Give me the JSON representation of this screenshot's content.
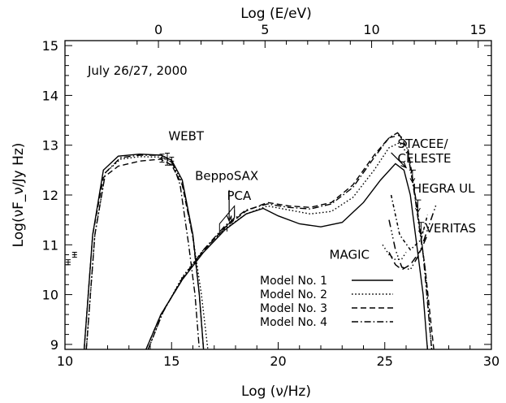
{
  "chart_data": {
    "type": "line",
    "title": "",
    "annotation_date": "July 26/27, 2000",
    "xlabel": "Log (ν/Hz)",
    "ylabel": "Log(νF_ν/Jy Hz)",
    "top_xlabel": "Log (E/eV)",
    "xlim": [
      10,
      30
    ],
    "ylim": [
      8.9,
      15.1
    ],
    "x_ticks": [
      "10",
      "15",
      "20",
      "25",
      "30"
    ],
    "y_ticks": [
      "9",
      "10",
      "11",
      "12",
      "13",
      "14",
      "15"
    ],
    "top_ticks": [
      "0",
      "5",
      "10",
      "15"
    ],
    "top_tick_offset": 14.383,
    "legend_position": "bottom-right",
    "series": [
      {
        "name": "Model No. 1",
        "dash": "",
        "sync": [
          [
            10.9,
            8.9
          ],
          [
            11.3,
            11.2
          ],
          [
            11.8,
            12.5
          ],
          [
            12.5,
            12.78
          ],
          [
            13.5,
            12.82
          ],
          [
            14.5,
            12.8
          ],
          [
            15.0,
            12.7
          ],
          [
            15.5,
            12.3
          ],
          [
            16.0,
            11.2
          ],
          [
            16.3,
            10.0
          ],
          [
            16.5,
            8.9
          ]
        ],
        "ic": [
          [
            13.8,
            8.9
          ],
          [
            14.5,
            9.6
          ],
          [
            15.5,
            10.3
          ],
          [
            16.5,
            10.85
          ],
          [
            17.5,
            11.3
          ],
          [
            18.5,
            11.62
          ],
          [
            19.3,
            11.73
          ],
          [
            20.0,
            11.58
          ],
          [
            21.0,
            11.42
          ],
          [
            22.0,
            11.36
          ],
          [
            23.0,
            11.45
          ],
          [
            24.0,
            11.85
          ],
          [
            24.8,
            12.3
          ],
          [
            25.5,
            12.63
          ],
          [
            25.9,
            12.5
          ],
          [
            26.2,
            12.0
          ],
          [
            26.5,
            11.0
          ],
          [
            26.8,
            10.0
          ],
          [
            27.0,
            8.9
          ]
        ]
      },
      {
        "name": "Model No. 2",
        "dash": "1.6,2.6",
        "sync": [
          [
            11.0,
            8.9
          ],
          [
            11.4,
            11.2
          ],
          [
            11.9,
            12.45
          ],
          [
            12.6,
            12.72
          ],
          [
            13.5,
            12.77
          ],
          [
            14.5,
            12.76
          ],
          [
            15.0,
            12.66
          ],
          [
            15.5,
            12.25
          ],
          [
            16.0,
            11.15
          ],
          [
            16.4,
            10.0
          ],
          [
            16.7,
            8.9
          ]
        ],
        "ic": [
          [
            13.9,
            8.9
          ],
          [
            14.6,
            9.65
          ],
          [
            15.5,
            10.35
          ],
          [
            16.5,
            10.9
          ],
          [
            17.5,
            11.32
          ],
          [
            18.5,
            11.62
          ],
          [
            19.5,
            11.78
          ],
          [
            20.5,
            11.7
          ],
          [
            21.5,
            11.62
          ],
          [
            22.5,
            11.67
          ],
          [
            23.5,
            11.95
          ],
          [
            24.5,
            12.5
          ],
          [
            25.2,
            12.95
          ],
          [
            25.7,
            13.05
          ],
          [
            26.1,
            12.8
          ],
          [
            26.5,
            11.8
          ],
          [
            26.9,
            10.5
          ],
          [
            27.2,
            8.9
          ]
        ]
      },
      {
        "name": "Model No. 3",
        "dash": "7,4",
        "sync": [
          [
            10.9,
            8.9
          ],
          [
            11.3,
            11.2
          ],
          [
            11.8,
            12.35
          ],
          [
            12.5,
            12.58
          ],
          [
            13.5,
            12.68
          ],
          [
            14.5,
            12.72
          ],
          [
            15.0,
            12.6
          ],
          [
            15.5,
            12.2
          ],
          [
            16.0,
            11.15
          ],
          [
            16.3,
            10.0
          ],
          [
            16.5,
            8.9
          ]
        ],
        "ic": [
          [
            13.8,
            8.9
          ],
          [
            14.5,
            9.6
          ],
          [
            15.5,
            10.3
          ],
          [
            16.5,
            10.88
          ],
          [
            17.5,
            11.35
          ],
          [
            18.5,
            11.68
          ],
          [
            19.5,
            11.85
          ],
          [
            20.5,
            11.78
          ],
          [
            21.5,
            11.75
          ],
          [
            22.5,
            11.85
          ],
          [
            23.5,
            12.2
          ],
          [
            24.5,
            12.8
          ],
          [
            25.2,
            13.15
          ],
          [
            25.7,
            13.2
          ],
          [
            26.1,
            12.9
          ],
          [
            26.5,
            11.8
          ],
          [
            26.9,
            10.5
          ],
          [
            27.3,
            8.9
          ]
        ]
      },
      {
        "name": "Model No. 4",
        "dash": "8,3,1.6,3",
        "sync": [
          [
            11.0,
            8.9
          ],
          [
            11.4,
            11.2
          ],
          [
            11.9,
            12.45
          ],
          [
            12.6,
            12.75
          ],
          [
            13.5,
            12.8
          ],
          [
            14.5,
            12.8
          ],
          [
            15.0,
            12.7
          ],
          [
            15.4,
            12.2
          ],
          [
            15.8,
            11.0
          ],
          [
            16.1,
            10.0
          ],
          [
            16.3,
            8.9
          ]
        ],
        "ic": [
          [
            13.9,
            8.9
          ],
          [
            14.6,
            9.65
          ],
          [
            15.5,
            10.33
          ],
          [
            16.5,
            10.9
          ],
          [
            17.5,
            11.38
          ],
          [
            18.5,
            11.7
          ],
          [
            19.5,
            11.82
          ],
          [
            20.5,
            11.75
          ],
          [
            21.5,
            11.72
          ],
          [
            22.5,
            11.82
          ],
          [
            23.5,
            12.15
          ],
          [
            24.5,
            12.75
          ],
          [
            25.2,
            13.15
          ],
          [
            25.6,
            13.25
          ],
          [
            26.0,
            13.05
          ],
          [
            26.4,
            12.0
          ],
          [
            26.8,
            10.8
          ],
          [
            27.2,
            8.9
          ]
        ]
      }
    ],
    "sensitivity_curves": [
      {
        "name": "MAGIC",
        "dash": "9,5",
        "points": [
          [
            25.2,
            10.85
          ],
          [
            25.5,
            10.6
          ],
          [
            25.8,
            10.5
          ],
          [
            26.2,
            10.6
          ],
          [
            26.7,
            10.9
          ],
          [
            27.0,
            11.2
          ]
        ]
      },
      {
        "name": "VERITAS",
        "dash": "9,4,1.5,3,1.5,3,1.5,4",
        "points": [
          [
            25.2,
            11.5
          ],
          [
            25.5,
            10.9
          ],
          [
            25.8,
            10.55
          ],
          [
            26.2,
            10.5
          ],
          [
            26.6,
            10.8
          ],
          [
            27.0,
            11.3
          ],
          [
            27.4,
            11.8
          ]
        ]
      },
      {
        "name": "STACEE/CELESTE",
        "dash": "1.4,3.2",
        "points": [
          [
            24.9,
            11.0
          ],
          [
            25.2,
            10.8
          ],
          [
            25.5,
            10.7
          ],
          [
            25.8,
            10.72
          ],
          [
            26.0,
            10.85
          ]
        ]
      },
      {
        "name": "HEGRA UL",
        "dash": "4,3,1.5,3",
        "points": [
          [
            25.3,
            12.0
          ],
          [
            25.7,
            11.2
          ],
          [
            26.2,
            10.9
          ],
          [
            26.7,
            11.1
          ],
          [
            27.0,
            11.6
          ]
        ]
      }
    ],
    "error_bars": [
      {
        "label": "WEBT",
        "x": 14.8,
        "y": 12.72,
        "yerr": 0.12
      },
      {
        "label": "",
        "x": 14.55,
        "y": 12.74,
        "yerr": 0.08
      },
      {
        "label": "",
        "x": 15.0,
        "y": 12.68,
        "yerr": 0.08
      },
      {
        "label": "",
        "x": 10.15,
        "y": 10.65,
        "yerr": 0.05
      },
      {
        "label": "",
        "x": 10.45,
        "y": 10.8,
        "yerr": 0.05
      }
    ],
    "pca_bowtie": [
      [
        17.25,
        11.42
      ],
      [
        17.95,
        11.78
      ],
      [
        17.95,
        11.55
      ],
      [
        17.25,
        11.22
      ]
    ],
    "sax_points": [
      [
        17.6,
        11.35
      ],
      [
        17.8,
        11.5
      ],
      [
        17.95,
        11.62
      ]
    ],
    "upper_limits": [
      [
        26.3,
        12.5
      ],
      [
        26.55,
        11.9
      ],
      [
        26.7,
        11.45
      ]
    ],
    "annotations": [
      {
        "text": "WEBT",
        "x": 14.85,
        "y": 13.1
      },
      {
        "text": "BeppoSAX",
        "x": 16.1,
        "y": 12.3
      },
      {
        "text": "PCA",
        "x": 17.6,
        "y": 11.9
      },
      {
        "text": "STACEE/",
        "x": 25.6,
        "y": 12.95
      },
      {
        "text": "CELESTE",
        "x": 25.6,
        "y": 12.65
      },
      {
        "text": "HEGRA UL",
        "x": 26.3,
        "y": 12.05
      },
      {
        "text": "VERITAS",
        "x": 26.9,
        "y": 11.25
      },
      {
        "text": "MAGIC",
        "x": 22.4,
        "y": 10.72
      }
    ],
    "arrows": [
      {
        "from": [
          17.7,
          12.1
        ],
        "to": [
          17.7,
          11.48
        ]
      },
      {
        "from": [
          25.3,
          12.85
        ],
        "to": [
          26.0,
          12.55
        ]
      }
    ]
  }
}
